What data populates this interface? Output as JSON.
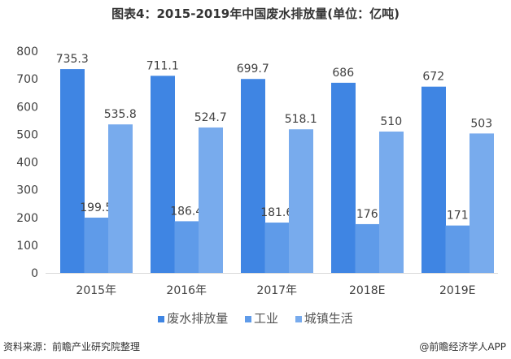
{
  "chart_data": {
    "type": "bar",
    "title": "图表4：2015-2019年中国废水排放量(单位：亿吨)",
    "categories": [
      "2015年",
      "2016年",
      "2017年",
      "2018E",
      "2019E"
    ],
    "series": [
      {
        "name": "废水排放量",
        "values": [
          735.3,
          711.1,
          699.7,
          686,
          672
        ],
        "color": "#3f85e3"
      },
      {
        "name": "工业",
        "values": [
          199.5,
          186.4,
          181.6,
          176,
          171
        ],
        "color": "#5f9be9"
      },
      {
        "name": "城镇生活",
        "values": [
          535.8,
          524.7,
          518.1,
          510,
          503
        ],
        "color": "#78abed"
      }
    ],
    "ylim": [
      0,
      800
    ],
    "yticks": [
      0,
      100,
      200,
      300,
      400,
      500,
      600,
      700,
      800
    ],
    "grid": false,
    "legend": "bottom"
  },
  "footer": {
    "source": "资料来源：前瞻产业研究院整理",
    "credit": "@前瞻经济学人APP"
  }
}
